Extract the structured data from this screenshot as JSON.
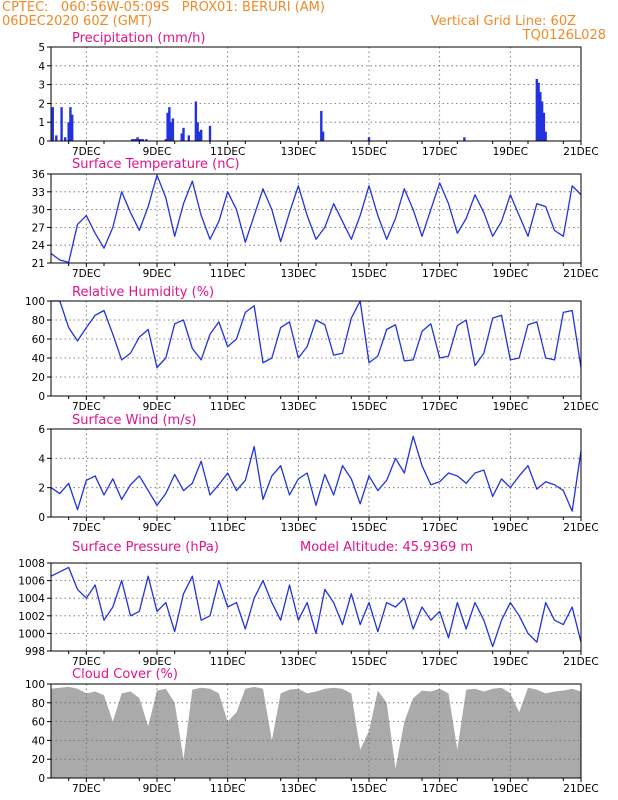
{
  "header": {
    "line1_left": "CPTEC:   060:56W-05:09S   PROX01: BERURI (AM)",
    "line2_left": "06DEC2020 60Z (GMT)",
    "line2_right": "Vertical Grid Line: 60Z",
    "line3_right": "TQ0126L028"
  },
  "colors": {
    "series": "#2233dd",
    "cloud": "#aaaaaa",
    "title": "#e0148c",
    "header": "#f08a28"
  },
  "x_axis": {
    "ticks": [
      "7DEC",
      "9DEC",
      "11DEC",
      "13DEC",
      "15DEC",
      "17DEC",
      "19DEC",
      "21DEC"
    ],
    "range": [
      "6DEC",
      "21DEC"
    ]
  },
  "chart_data": [
    {
      "type": "bar",
      "title": "Precipitation (mm/h)",
      "ylim": [
        0,
        5
      ],
      "yticks": [
        0,
        1,
        2,
        3,
        4,
        5
      ],
      "x": [
        6.05,
        6.15,
        6.3,
        6.4,
        6.5,
        6.55,
        6.6,
        8.3,
        8.35,
        8.4,
        8.45,
        8.5,
        8.55,
        8.6,
        8.7,
        9.25,
        9.3,
        9.35,
        9.4,
        9.45,
        9.7,
        9.75,
        9.9,
        10.1,
        10.15,
        10.2,
        10.25,
        10.5,
        13.65,
        13.7,
        15.0,
        17.7,
        19.75,
        19.8,
        19.85,
        19.9,
        19.95,
        20.0
      ],
      "values": [
        1.8,
        0.3,
        1.8,
        0.2,
        1.0,
        1.8,
        1.4,
        0.1,
        0.1,
        0.1,
        0.2,
        0.1,
        0.1,
        0.1,
        0.1,
        0.1,
        1.5,
        1.8,
        1.0,
        1.2,
        0.4,
        0.7,
        0.3,
        2.1,
        1.0,
        0.5,
        0.6,
        0.8,
        1.6,
        0.5,
        0.2,
        0.2,
        3.3,
        3.1,
        2.6,
        2.1,
        1.5,
        0.5
      ]
    },
    {
      "type": "line",
      "title": "Surface Temperature (nC)",
      "ylim": [
        21,
        36
      ],
      "yticks": [
        21,
        24,
        27,
        30,
        33,
        36
      ],
      "x": [
        6.0,
        6.25,
        6.5,
        6.75,
        7.0,
        7.25,
        7.5,
        7.75,
        8.0,
        8.25,
        8.5,
        8.75,
        9.0,
        9.25,
        9.5,
        9.75,
        10.0,
        10.25,
        10.5,
        10.75,
        11.0,
        11.25,
        11.5,
        11.75,
        12.0,
        12.25,
        12.5,
        12.75,
        13.0,
        13.25,
        13.5,
        13.75,
        14.0,
        14.25,
        14.5,
        14.75,
        15.0,
        15.25,
        15.5,
        15.75,
        16.0,
        16.25,
        16.5,
        16.75,
        17.0,
        17.25,
        17.5,
        17.75,
        18.0,
        18.25,
        18.5,
        18.75,
        19.0,
        19.25,
        19.5,
        19.75,
        20.0,
        20.25,
        20.5,
        20.75,
        21.0
      ],
      "values": [
        22.6,
        21.5,
        21.1,
        27.5,
        29.0,
        26.0,
        23.5,
        27.0,
        33.0,
        29.5,
        26.5,
        30.5,
        35.8,
        32.0,
        25.5,
        31.0,
        34.8,
        29.0,
        25.0,
        28.0,
        33.0,
        30.0,
        24.5,
        29.0,
        33.5,
        30.0,
        24.6,
        29.5,
        34.0,
        29.0,
        25.0,
        27.0,
        31.0,
        28.0,
        25.0,
        29.0,
        34.0,
        29.0,
        25.0,
        28.5,
        33.5,
        30.0,
        25.5,
        30.0,
        34.5,
        31.0,
        26.0,
        28.5,
        32.5,
        29.5,
        25.5,
        28.0,
        32.5,
        29.0,
        25.5,
        31.0,
        30.5,
        26.5,
        25.5,
        34.0,
        32.5
      ]
    },
    {
      "type": "line",
      "title": "Relative Humidity (%)",
      "ylim": [
        0,
        100
      ],
      "yticks": [
        0,
        20,
        40,
        60,
        80,
        100
      ],
      "x": [
        6.0,
        6.25,
        6.5,
        6.75,
        7.0,
        7.25,
        7.5,
        7.75,
        8.0,
        8.25,
        8.5,
        8.75,
        9.0,
        9.25,
        9.5,
        9.75,
        10.0,
        10.25,
        10.5,
        10.75,
        11.0,
        11.25,
        11.5,
        11.75,
        12.0,
        12.25,
        12.5,
        12.75,
        13.0,
        13.25,
        13.5,
        13.75,
        14.0,
        14.25,
        14.5,
        14.75,
        15.0,
        15.25,
        15.5,
        15.75,
        16.0,
        16.25,
        16.5,
        16.75,
        17.0,
        17.25,
        17.5,
        17.75,
        18.0,
        18.25,
        18.5,
        18.75,
        19.0,
        19.25,
        19.5,
        19.75,
        20.0,
        20.25,
        20.5,
        20.75,
        21.0
      ],
      "values": [
        100,
        100,
        72,
        58,
        72,
        85,
        90,
        65,
        38,
        45,
        62,
        70,
        30,
        40,
        76,
        80,
        50,
        38,
        65,
        78,
        52,
        60,
        88,
        95,
        35,
        40,
        72,
        78,
        40,
        52,
        80,
        75,
        43,
        45,
        82,
        100,
        35,
        42,
        70,
        75,
        37,
        38,
        68,
        76,
        40,
        42,
        74,
        80,
        32,
        45,
        82,
        85,
        38,
        40,
        75,
        78,
        40,
        38,
        88,
        90,
        30
      ]
    },
    {
      "type": "line",
      "title": "Surface Wind (m/s)",
      "ylim": [
        0,
        6
      ],
      "yticks": [
        0,
        2,
        4,
        6
      ],
      "x": [
        6.0,
        6.25,
        6.5,
        6.75,
        7.0,
        7.25,
        7.5,
        7.75,
        8.0,
        8.25,
        8.5,
        8.75,
        9.0,
        9.25,
        9.5,
        9.75,
        10.0,
        10.25,
        10.5,
        10.75,
        11.0,
        11.25,
        11.5,
        11.75,
        12.0,
        12.25,
        12.5,
        12.75,
        13.0,
        13.25,
        13.5,
        13.75,
        14.0,
        14.25,
        14.5,
        14.75,
        15.0,
        15.25,
        15.5,
        15.75,
        16.0,
        16.25,
        16.5,
        16.75,
        17.0,
        17.25,
        17.5,
        17.75,
        18.0,
        18.25,
        18.5,
        18.75,
        19.0,
        19.25,
        19.5,
        19.75,
        20.0,
        20.25,
        20.5,
        20.75,
        21.0
      ],
      "values": [
        2.0,
        1.6,
        2.3,
        0.5,
        2.5,
        2.8,
        1.5,
        2.6,
        1.2,
        2.2,
        2.8,
        1.8,
        0.8,
        1.6,
        2.9,
        1.8,
        2.3,
        3.8,
        1.5,
        2.2,
        3.0,
        1.8,
        2.5,
        4.8,
        1.2,
        2.8,
        3.5,
        1.5,
        2.6,
        3.0,
        0.8,
        2.9,
        1.5,
        3.5,
        2.6,
        0.9,
        2.8,
        1.8,
        2.5,
        4.0,
        3.0,
        5.5,
        3.5,
        2.2,
        2.4,
        3.0,
        2.8,
        2.3,
        3.0,
        3.2,
        1.4,
        2.6,
        2.0,
        2.8,
        3.5,
        1.9,
        2.4,
        2.2,
        1.8,
        0.4,
        4.5
      ]
    },
    {
      "type": "line",
      "title": "Surface Pressure (hPa)",
      "annotation": "Model Altitude: 45.9369 m",
      "ylim": [
        998,
        1008
      ],
      "yticks": [
        998,
        1000,
        1002,
        1004,
        1006,
        1008
      ],
      "x": [
        6.0,
        6.25,
        6.5,
        6.75,
        7.0,
        7.25,
        7.5,
        7.75,
        8.0,
        8.25,
        8.5,
        8.75,
        9.0,
        9.25,
        9.5,
        9.75,
        10.0,
        10.25,
        10.5,
        10.75,
        11.0,
        11.25,
        11.5,
        11.75,
        12.0,
        12.25,
        12.5,
        12.75,
        13.0,
        13.25,
        13.5,
        13.75,
        14.0,
        14.25,
        14.5,
        14.75,
        15.0,
        15.25,
        15.5,
        15.75,
        16.0,
        16.25,
        16.5,
        16.75,
        17.0,
        17.25,
        17.5,
        17.75,
        18.0,
        18.25,
        18.5,
        18.75,
        19.0,
        19.25,
        19.5,
        19.75,
        20.0,
        20.25,
        20.5,
        20.75,
        21.0
      ],
      "values": [
        1006.5,
        1007.0,
        1007.5,
        1005.0,
        1004.0,
        1005.5,
        1001.5,
        1003.0,
        1006.0,
        1002.0,
        1002.5,
        1006.5,
        1002.5,
        1003.5,
        1000.2,
        1004.5,
        1006.5,
        1001.5,
        1002.0,
        1006.0,
        1003.0,
        1003.5,
        1000.5,
        1004.0,
        1006.0,
        1003.5,
        1001.5,
        1005.5,
        1001.5,
        1003.5,
        1000.0,
        1005.0,
        1003.5,
        1001.0,
        1004.5,
        1001.0,
        1003.5,
        1000.2,
        1003.5,
        1003.0,
        1004.0,
        1000.5,
        1003.0,
        1001.5,
        1002.5,
        999.5,
        1003.5,
        1000.5,
        1003.5,
        1001.5,
        998.5,
        1001.5,
        1003.5,
        1002.0,
        1000.0,
        999.0,
        1003.5,
        1001.5,
        1001.0,
        1003.0,
        999.0
      ]
    },
    {
      "type": "area",
      "title": "Cloud Cover (%)",
      "ylim": [
        0,
        100
      ],
      "yticks": [
        0,
        20,
        40,
        60,
        80,
        100
      ],
      "x": [
        6.0,
        6.25,
        6.5,
        6.75,
        7.0,
        7.25,
        7.5,
        7.75,
        8.0,
        8.25,
        8.5,
        8.75,
        9.0,
        9.25,
        9.5,
        9.75,
        10.0,
        10.25,
        10.5,
        10.75,
        11.0,
        11.25,
        11.5,
        11.75,
        12.0,
        12.25,
        12.5,
        12.75,
        13.0,
        13.25,
        13.5,
        13.75,
        14.0,
        14.25,
        14.5,
        14.75,
        15.0,
        15.25,
        15.5,
        15.75,
        16.0,
        16.25,
        16.5,
        16.75,
        17.0,
        17.25,
        17.5,
        17.75,
        18.0,
        18.25,
        18.5,
        18.75,
        19.0,
        19.25,
        19.5,
        19.75,
        20.0,
        20.25,
        20.5,
        20.75,
        21.0
      ],
      "values": [
        95,
        96,
        97,
        95,
        90,
        92,
        88,
        60,
        90,
        92,
        85,
        55,
        93,
        95,
        80,
        20,
        94,
        96,
        95,
        90,
        60,
        70,
        95,
        97,
        95,
        40,
        90,
        94,
        95,
        90,
        92,
        95,
        96,
        95,
        90,
        30,
        50,
        93,
        80,
        10,
        60,
        85,
        93,
        92,
        95,
        90,
        30,
        94,
        95,
        92,
        95,
        96,
        90,
        70,
        96,
        94,
        90,
        92,
        93,
        95,
        92
      ]
    }
  ]
}
